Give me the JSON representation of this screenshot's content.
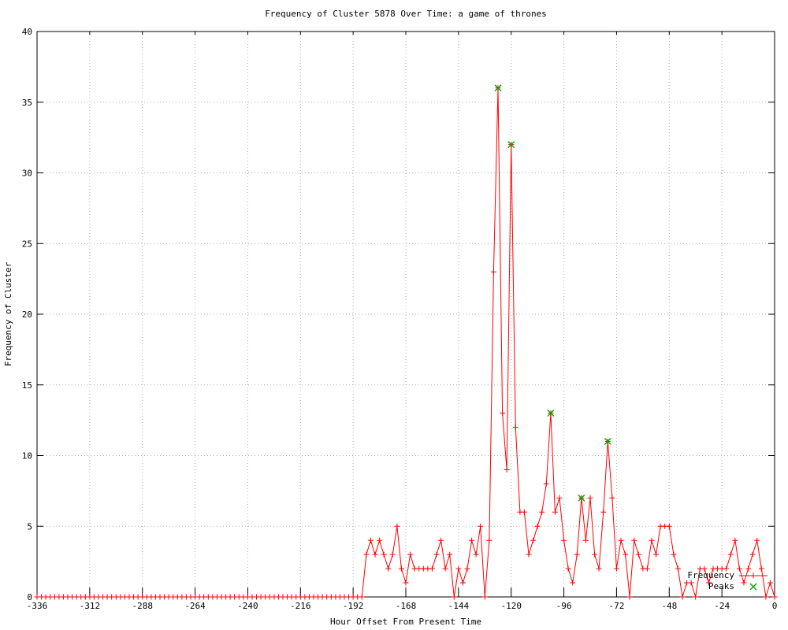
{
  "title": "Frequency of Cluster 5878 Over Time: a game of thrones",
  "x_axis": {
    "label": "Hour Offset From Present Time",
    "ticks": [
      -336,
      -312,
      -288,
      -264,
      -240,
      -216,
      -192,
      -168,
      -144,
      -120,
      -96,
      -72,
      -48,
      -24,
      0
    ]
  },
  "y_axis": {
    "label": "Frequency of Cluster",
    "ticks": [
      0,
      5,
      10,
      15,
      20,
      25,
      30,
      35,
      40
    ]
  },
  "legend": {
    "items": [
      {
        "label": "Frequency",
        "color": "#ff0000",
        "marker": "line-plus"
      },
      {
        "label": "Peaks",
        "color": "#00a800",
        "marker": "x"
      }
    ]
  },
  "colors": {
    "series": "#ff0000",
    "peaks": "#00a800",
    "grid": "#b0b0b0",
    "axis": "#000000",
    "background": "#ffffff"
  },
  "chart_data": {
    "type": "line",
    "title": "Frequency of Cluster 5878 Over Time: a game of thrones",
    "xlabel": "Hour Offset From Present Time",
    "ylabel": "Frequency of Cluster",
    "xlim": [
      -336,
      0
    ],
    "ylim": [
      0,
      40
    ],
    "grid": true,
    "legend_position": "bottom-right",
    "x_start": -336,
    "x_step": 2,
    "series": [
      {
        "name": "Frequency",
        "values": [
          0,
          0,
          0,
          0,
          0,
          0,
          0,
          0,
          0,
          0,
          0,
          0,
          0,
          0,
          0,
          0,
          0,
          0,
          0,
          0,
          0,
          0,
          0,
          0,
          0,
          0,
          0,
          0,
          0,
          0,
          0,
          0,
          0,
          0,
          0,
          0,
          0,
          0,
          0,
          0,
          0,
          0,
          0,
          0,
          0,
          0,
          0,
          0,
          0,
          0,
          0,
          0,
          0,
          0,
          0,
          0,
          0,
          0,
          0,
          0,
          0,
          0,
          0,
          0,
          0,
          0,
          0,
          0,
          0,
          0,
          0,
          0,
          0,
          0,
          0,
          3,
          4,
          3,
          4,
          3,
          2,
          3,
          5,
          2,
          1,
          3,
          2,
          2,
          2,
          2,
          2,
          3,
          4,
          2,
          3,
          0,
          2,
          1,
          2,
          4,
          3,
          5,
          0,
          4,
          23,
          36,
          13,
          9,
          32,
          12,
          6,
          6,
          3,
          4,
          5,
          6,
          8,
          13,
          6,
          7,
          4,
          2,
          1,
          3,
          7,
          4,
          7,
          3,
          2,
          6,
          11,
          7,
          2,
          4,
          3,
          0,
          4,
          3,
          2,
          2,
          4,
          3,
          5,
          5,
          5,
          3,
          2,
          0,
          1,
          1,
          0,
          2,
          2,
          1,
          2,
          2,
          2,
          2,
          3,
          4,
          2,
          1,
          2,
          3,
          4,
          2,
          0,
          1,
          0
        ]
      }
    ],
    "peaks": [
      {
        "x": -126,
        "y": 36
      },
      {
        "x": -120,
        "y": 32
      },
      {
        "x": -102,
        "y": 13
      },
      {
        "x": -88,
        "y": 7
      },
      {
        "x": -76,
        "y": 11
      }
    ]
  }
}
